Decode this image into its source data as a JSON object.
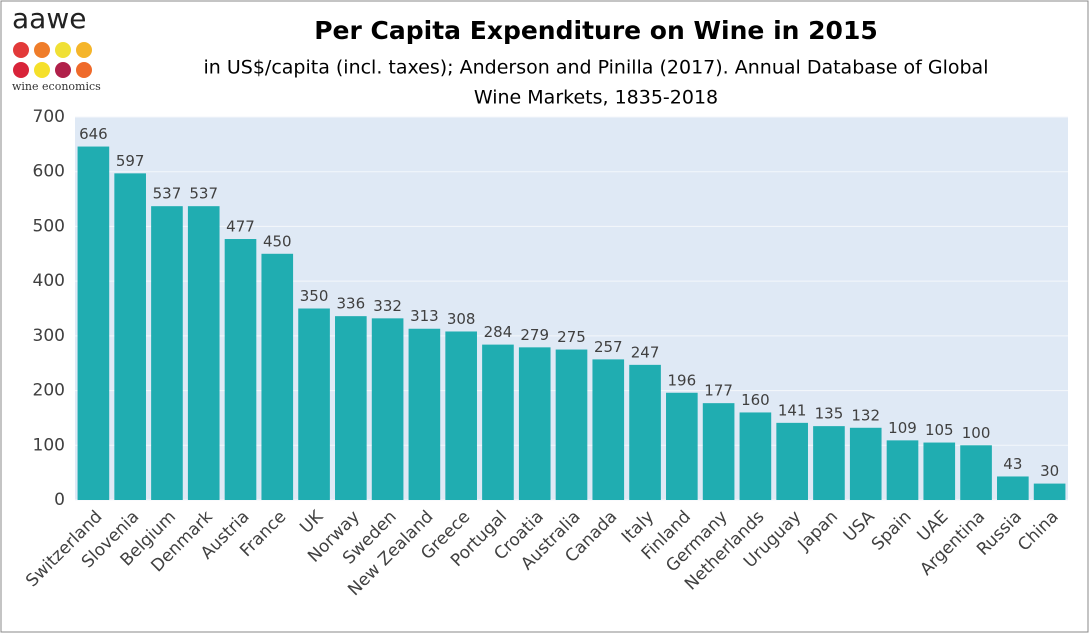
{
  "chart_data": {
    "type": "bar",
    "logo": {
      "name": "aawe",
      "tagline": "wine economics"
    },
    "title": "Per Capita Expenditure on Wine in 2015",
    "subtitle": [
      "in US$/capita (incl. taxes); Anderson and Pinilla (2017). Annual Database of Global",
      "Wine Markets, 1835-2018"
    ],
    "categories": [
      "Switzerland",
      "Slovenia",
      "Belgium",
      "Denmark",
      "Austria",
      "France",
      "UK",
      "Norway",
      "Sweden",
      "New Zealand",
      "Greece",
      "Portugal",
      "Croatia",
      "Australia",
      "Canada",
      "Italy",
      "Finland",
      "Germany",
      "Netherlands",
      "Uruguay",
      "Japan",
      "USA",
      "Spain",
      "UAE",
      "Argentina",
      "Russia",
      "China"
    ],
    "values": [
      646,
      597,
      537,
      537,
      477,
      450,
      350,
      336,
      332,
      313,
      308,
      284,
      279,
      275,
      257,
      247,
      196,
      177,
      160,
      141,
      135,
      132,
      109,
      105,
      100,
      43,
      30
    ],
    "color": "#20adb1",
    "ylim": [
      0,
      700
    ],
    "yticks": [
      0,
      100,
      200,
      300,
      400,
      500,
      600,
      700
    ],
    "grid": true
  }
}
